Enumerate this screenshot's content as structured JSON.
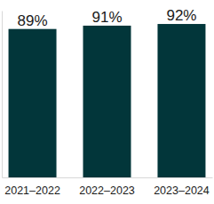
{
  "chart_data": {
    "type": "bar",
    "categories": [
      "2021–2022",
      "2022–2023",
      "2023–2024"
    ],
    "values": [
      89,
      91,
      92
    ],
    "value_labels": [
      "89%",
      "91%",
      "92%"
    ],
    "color": "#02363a",
    "ylim": [
      0,
      100
    ],
    "data_labels": true,
    "tick_labels": "x"
  }
}
